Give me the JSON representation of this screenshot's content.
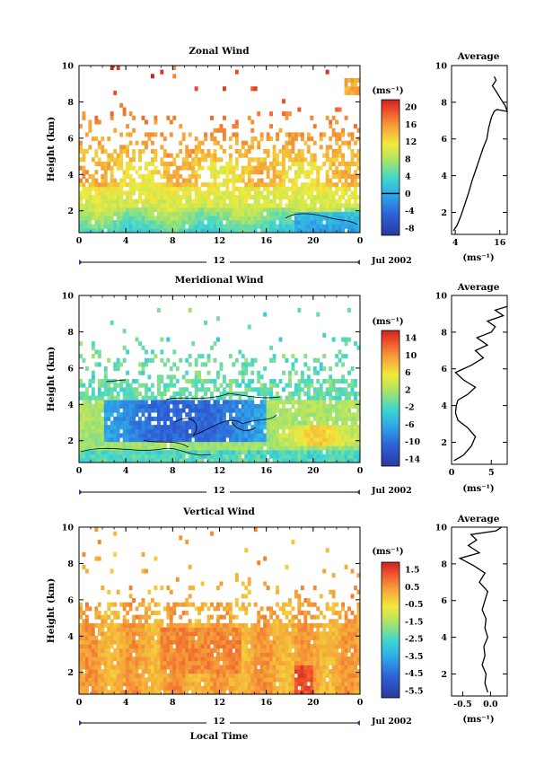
{
  "xlabel": "Local Time",
  "chart_data": [
    {
      "type": "heatmap",
      "title": "Zonal Wind",
      "ylabel": "Height (km)",
      "xlabel": "",
      "x_ticks": [
        "0",
        "4",
        "8",
        "12",
        "16",
        "20",
        "0"
      ],
      "xlim": [
        0,
        24
      ],
      "y_ticks": [
        "2",
        "4",
        "6",
        "8",
        "10"
      ],
      "ylim": [
        0.8,
        10
      ],
      "date_marker": "12",
      "date_label": "Jul 2002",
      "colorbar": {
        "unit": "(ms⁻¹)",
        "labels": [
          "20",
          "16",
          "12",
          "8",
          "4",
          "0",
          "-4",
          "-8"
        ],
        "range": [
          -10,
          22
        ],
        "contour_at": "0"
      },
      "profile": {
        "title": "Average",
        "unit": "(ms⁻¹)",
        "x_ticks": [
          "4",
          "16"
        ],
        "xlim": [
          3,
          18
        ],
        "ylim": [
          0.8,
          10
        ],
        "y_ticks": [
          "2",
          "4",
          "6",
          "8",
          "10"
        ],
        "points": [
          [
            3.5,
            1.0
          ],
          [
            4.5,
            1.3
          ],
          [
            5.5,
            1.8
          ],
          [
            6.5,
            2.4
          ],
          [
            7.5,
            3.0
          ],
          [
            8.5,
            3.7
          ],
          [
            9.5,
            4.3
          ],
          [
            10.5,
            4.9
          ],
          [
            11.5,
            5.5
          ],
          [
            12.5,
            6.0
          ],
          [
            13.0,
            6.6
          ],
          [
            13.8,
            7.2
          ],
          [
            14.5,
            7.5
          ],
          [
            15.2,
            7.6
          ],
          [
            18.0,
            7.5
          ],
          [
            17.5,
            7.8
          ],
          [
            16.2,
            8.2
          ],
          [
            15.0,
            8.6
          ],
          [
            14.0,
            8.9
          ],
          [
            15.0,
            9.2
          ],
          [
            14.5,
            9.4
          ]
        ]
      }
    },
    {
      "type": "heatmap",
      "title": "Meridional Wind",
      "ylabel": "Height (km)",
      "xlabel": "",
      "x_ticks": [
        "0",
        "4",
        "8",
        "12",
        "16",
        "20",
        "0"
      ],
      "xlim": [
        0,
        24
      ],
      "y_ticks": [
        "2",
        "4",
        "6",
        "8",
        "10"
      ],
      "ylim": [
        0.8,
        10
      ],
      "date_marker": "12",
      "date_label": "Jul 2002",
      "colorbar": {
        "unit": "(ms⁻¹)",
        "labels": [
          "14",
          "10",
          "6",
          "2",
          "-2",
          "-6",
          "-10",
          "-14"
        ],
        "range": [
          -16,
          16
        ],
        "contour_at": "0"
      },
      "profile": {
        "title": "Average",
        "unit": "(ms⁻¹)",
        "x_ticks": [
          "0",
          "5"
        ],
        "xlim": [
          0,
          7
        ],
        "ylim": [
          0.8,
          10
        ],
        "y_ticks": [
          "2",
          "4",
          "6",
          "8",
          "10"
        ],
        "points": [
          [
            0.3,
            1.0
          ],
          [
            1.5,
            1.3
          ],
          [
            2.5,
            1.8
          ],
          [
            3.0,
            2.3
          ],
          [
            2.0,
            2.8
          ],
          [
            0.8,
            3.2
          ],
          [
            0.5,
            3.6
          ],
          [
            0.6,
            4.0
          ],
          [
            0.8,
            4.3
          ],
          [
            2.0,
            4.6
          ],
          [
            3.0,
            5.0
          ],
          [
            1.5,
            5.4
          ],
          [
            0.5,
            5.8
          ],
          [
            2.5,
            6.2
          ],
          [
            4.0,
            6.6
          ],
          [
            3.0,
            7.0
          ],
          [
            4.5,
            7.3
          ],
          [
            3.2,
            7.7
          ],
          [
            5.0,
            8.0
          ],
          [
            5.5,
            8.3
          ],
          [
            4.5,
            8.6
          ],
          [
            6.5,
            8.9
          ],
          [
            5.5,
            9.2
          ],
          [
            7.0,
            9.4
          ]
        ]
      }
    },
    {
      "type": "heatmap",
      "title": "Vertical Wind",
      "ylabel": "Height (km)",
      "xlabel": "Local Time",
      "x_ticks": [
        "0",
        "4",
        "8",
        "12",
        "16",
        "20",
        "0"
      ],
      "xlim": [
        0,
        24
      ],
      "y_ticks": [
        "2",
        "4",
        "6",
        "8",
        "10"
      ],
      "ylim": [
        0.8,
        10
      ],
      "date_marker": "12",
      "date_label": "Jul 2002",
      "colorbar": {
        "unit": "(ms⁻¹)",
        "labels": [
          "1.5",
          "0.5",
          "-0.5",
          "-1.5",
          "-2.5",
          "-3.5",
          "-4.5",
          "-5.5"
        ],
        "range": [
          -6,
          2
        ],
        "contour_at": ""
      },
      "profile": {
        "title": "Average",
        "unit": "(ms⁻¹)",
        "x_ticks": [
          "-0.5",
          "0.0"
        ],
        "xlim": [
          -0.7,
          0.3
        ],
        "ylim": [
          0.8,
          10
        ],
        "y_ticks": [
          "2",
          "4",
          "6",
          "8",
          "10"
        ],
        "points": [
          [
            -0.05,
            1.0
          ],
          [
            -0.1,
            1.5
          ],
          [
            -0.08,
            2.0
          ],
          [
            -0.15,
            2.5
          ],
          [
            -0.1,
            3.0
          ],
          [
            -0.12,
            3.5
          ],
          [
            -0.05,
            4.0
          ],
          [
            -0.1,
            4.5
          ],
          [
            -0.08,
            5.0
          ],
          [
            -0.15,
            5.5
          ],
          [
            -0.1,
            6.0
          ],
          [
            -0.05,
            6.5
          ],
          [
            -0.2,
            7.0
          ],
          [
            -0.1,
            7.5
          ],
          [
            -0.3,
            7.9
          ],
          [
            -0.55,
            8.3
          ],
          [
            -0.2,
            8.6
          ],
          [
            -0.4,
            9.0
          ],
          [
            -0.25,
            9.3
          ],
          [
            -0.35,
            9.6
          ],
          [
            0.1,
            9.8
          ],
          [
            0.2,
            10.0
          ]
        ]
      }
    }
  ]
}
